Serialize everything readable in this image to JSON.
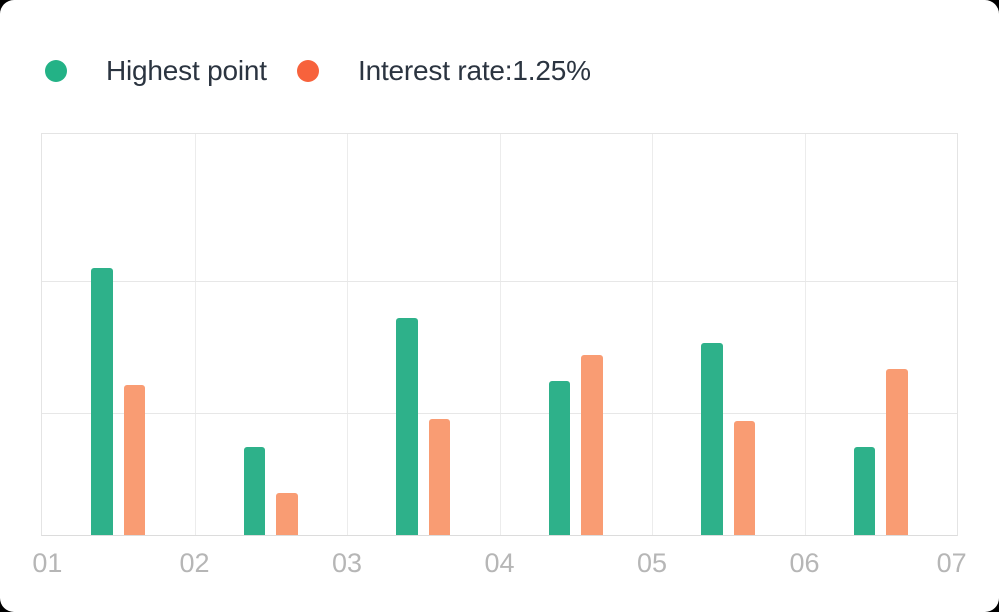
{
  "page": {
    "background": "#000000",
    "card_background": "#ffffff"
  },
  "legend": {
    "position": "top-left",
    "items": [
      {
        "label": "Highest point",
        "dot_color": "#23B286"
      },
      {
        "label": "Interest rate:1.25%",
        "dot_color": "#F7623C"
      }
    ]
  },
  "chart_data": {
    "type": "bar",
    "title": "",
    "xlabel": "",
    "ylabel": "",
    "categories": [
      "01",
      "02",
      "03",
      "04",
      "05",
      "06"
    ],
    "x_axis_boundary_labels": [
      "01",
      "02",
      "03",
      "04",
      "05",
      "06",
      "07"
    ],
    "series": [
      {
        "name": "Highest point",
        "color": "#2EB18A",
        "values": [
          66.5,
          22,
          54,
          38.5,
          48,
          22
        ]
      },
      {
        "name": "Interest rate:1.25%",
        "color": "#F99C73",
        "values": [
          37.5,
          10.5,
          29,
          45,
          28.5,
          41.5
        ]
      }
    ],
    "ylim": [
      0,
      100
    ],
    "y_gridline_values": [
      30.3,
      63
    ],
    "grid": true,
    "legend_position": "top-left",
    "axis_label_color": "#B6B6B6",
    "gridline_color": "#ECECEC",
    "axis_line_color": "#DCDCDC"
  }
}
